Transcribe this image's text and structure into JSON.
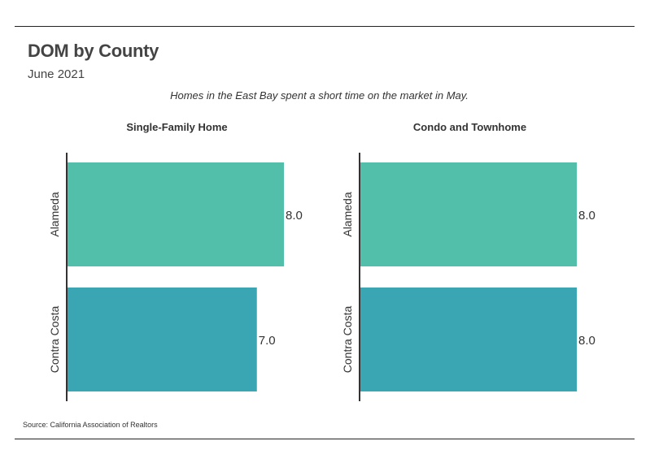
{
  "title": "DOM by County",
  "subtitle": "June 2021",
  "caption": "Homes in the East Bay spent a short time on the market in May.",
  "source": "Source:  California Association of Realtors",
  "colors": {
    "bar_1": "#52bfaa",
    "bar_2": "#3ba6b3",
    "axis": "#333333",
    "text": "#333333"
  },
  "chart_data": [
    {
      "type": "bar",
      "orientation": "horizontal",
      "title": "Single-Family Home",
      "categories": [
        "Alameda",
        "Contra Costa"
      ],
      "values": [
        8.0,
        7.0
      ],
      "value_labels": [
        "8.0",
        "7.0"
      ],
      "xlim": [
        0,
        8
      ],
      "grid": false
    },
    {
      "type": "bar",
      "orientation": "horizontal",
      "title": "Condo and Townhome",
      "categories": [
        "Alameda",
        "Contra Costa"
      ],
      "values": [
        8.0,
        8.0
      ],
      "value_labels": [
        "8.0",
        "8.0"
      ],
      "xlim": [
        0,
        8
      ],
      "grid": false
    }
  ]
}
